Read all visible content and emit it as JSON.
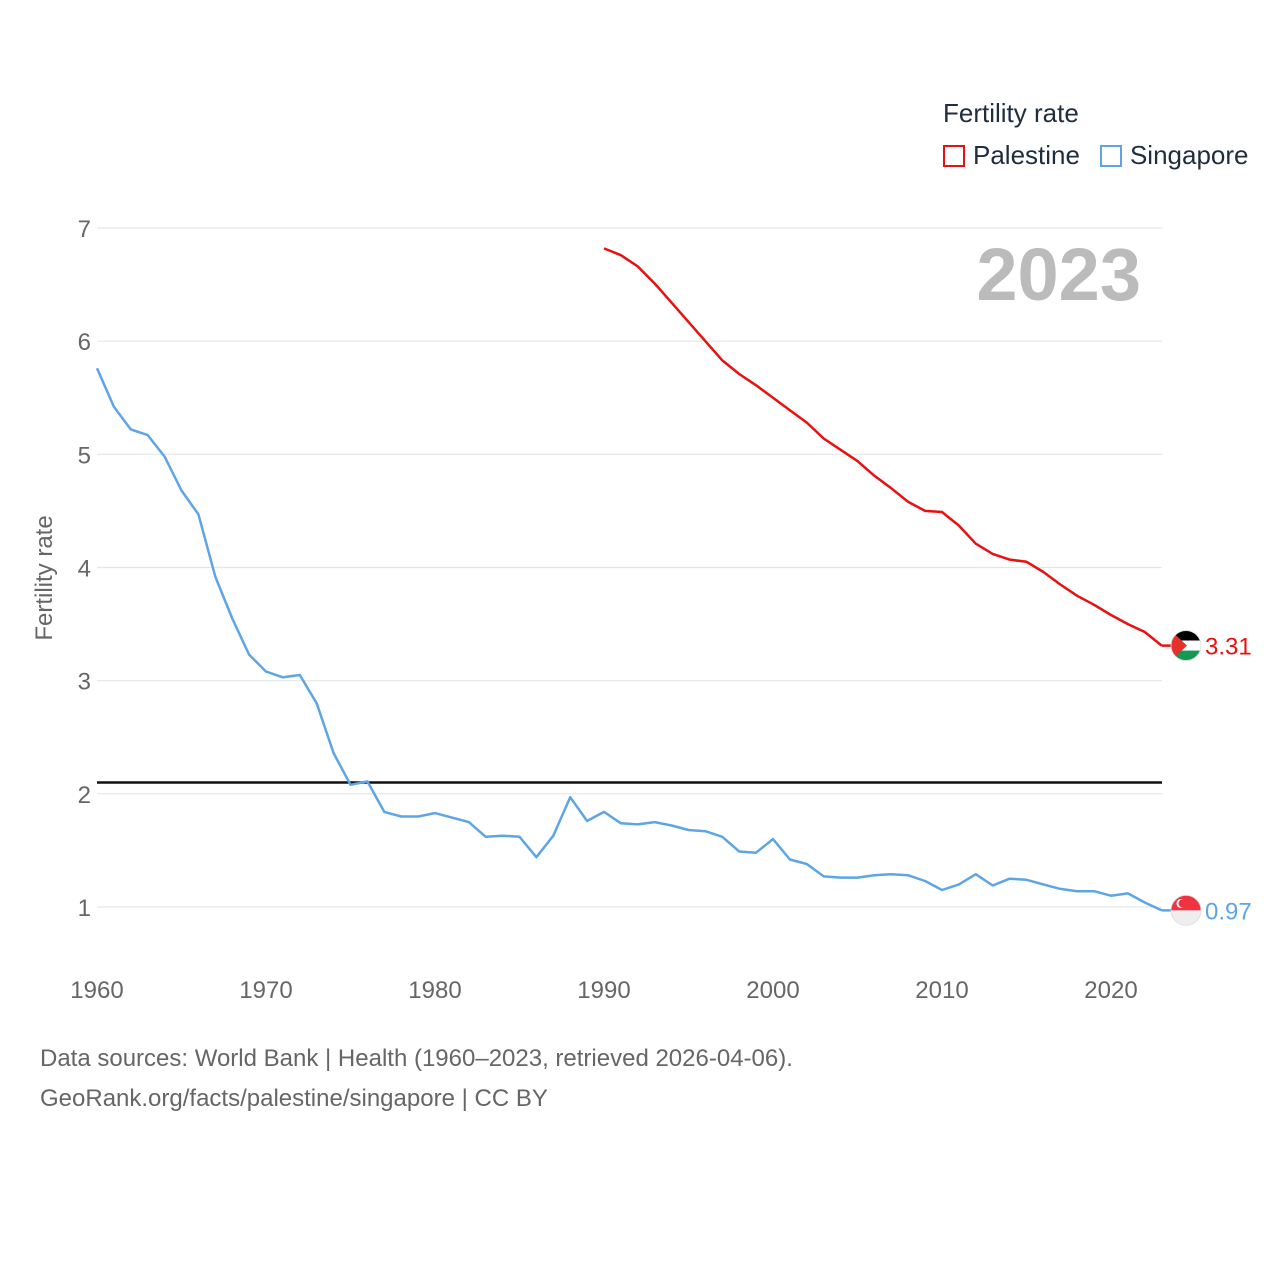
{
  "legend": {
    "title": "Fertility rate",
    "items": [
      {
        "label": "Palestine",
        "color": "#e8110f"
      },
      {
        "label": "Singapore",
        "color": "#5da5e6"
      }
    ]
  },
  "source": {
    "line1": "Data sources: World Bank | Health (1960–2023, retrieved 2026-04-06).",
    "line2": "GeoRank.org/facts/palestine/singapore | CC BY"
  },
  "chart_data": {
    "type": "line",
    "ylabel": "Fertility rate",
    "xlabel": "",
    "year_label": "2023",
    "xlim": [
      1960,
      2023
    ],
    "ylim": [
      0.5,
      7.1
    ],
    "yticks": [
      1,
      2,
      3,
      4,
      5,
      6,
      7
    ],
    "xticks": [
      1960,
      1970,
      1980,
      1990,
      2000,
      2010,
      2020
    ],
    "reference_line": 2.1,
    "grid": true,
    "legend_position": "top-right",
    "series": [
      {
        "name": "Palestine",
        "color": "#e8110f",
        "end_label": "3.31",
        "x": [
          1990,
          1991,
          1992,
          1993,
          1994,
          1995,
          1996,
          1997,
          1998,
          1999,
          2000,
          2001,
          2002,
          2003,
          2004,
          2005,
          2006,
          2007,
          2008,
          2009,
          2010,
          2011,
          2012,
          2013,
          2014,
          2015,
          2016,
          2017,
          2018,
          2019,
          2020,
          2021,
          2022,
          2023
        ],
        "values": [
          6.82,
          6.76,
          6.66,
          6.51,
          6.34,
          6.17,
          6.0,
          5.83,
          5.71,
          5.61,
          5.5,
          5.39,
          5.28,
          5.14,
          5.04,
          4.94,
          4.81,
          4.7,
          4.58,
          4.5,
          4.49,
          4.37,
          4.21,
          4.12,
          4.07,
          4.05,
          3.96,
          3.85,
          3.75,
          3.67,
          3.58,
          3.5,
          3.43,
          3.31
        ]
      },
      {
        "name": "Singapore",
        "color": "#5da5e6",
        "end_label": "0.97",
        "x": [
          1960,
          1961,
          1962,
          1963,
          1964,
          1965,
          1966,
          1967,
          1968,
          1969,
          1970,
          1971,
          1972,
          1973,
          1974,
          1975,
          1976,
          1977,
          1978,
          1979,
          1980,
          1981,
          1982,
          1983,
          1984,
          1985,
          1986,
          1987,
          1988,
          1989,
          1990,
          1991,
          1992,
          1993,
          1994,
          1995,
          1996,
          1997,
          1998,
          1999,
          2000,
          2001,
          2002,
          2003,
          2004,
          2005,
          2006,
          2007,
          2008,
          2009,
          2010,
          2011,
          2012,
          2013,
          2014,
          2015,
          2016,
          2017,
          2018,
          2019,
          2020,
          2021,
          2022,
          2023
        ],
        "values": [
          5.76,
          5.42,
          5.22,
          5.17,
          4.98,
          4.68,
          4.47,
          3.92,
          3.55,
          3.23,
          3.08,
          3.03,
          3.05,
          2.8,
          2.36,
          2.08,
          2.11,
          1.84,
          1.8,
          1.8,
          1.83,
          1.79,
          1.75,
          1.62,
          1.63,
          1.62,
          1.44,
          1.63,
          1.97,
          1.76,
          1.84,
          1.74,
          1.73,
          1.75,
          1.72,
          1.68,
          1.67,
          1.62,
          1.49,
          1.48,
          1.6,
          1.42,
          1.38,
          1.27,
          1.26,
          1.26,
          1.28,
          1.29,
          1.28,
          1.23,
          1.15,
          1.2,
          1.29,
          1.19,
          1.25,
          1.24,
          1.2,
          1.16,
          1.14,
          1.14,
          1.1,
          1.12,
          1.04,
          0.97
        ]
      }
    ]
  }
}
